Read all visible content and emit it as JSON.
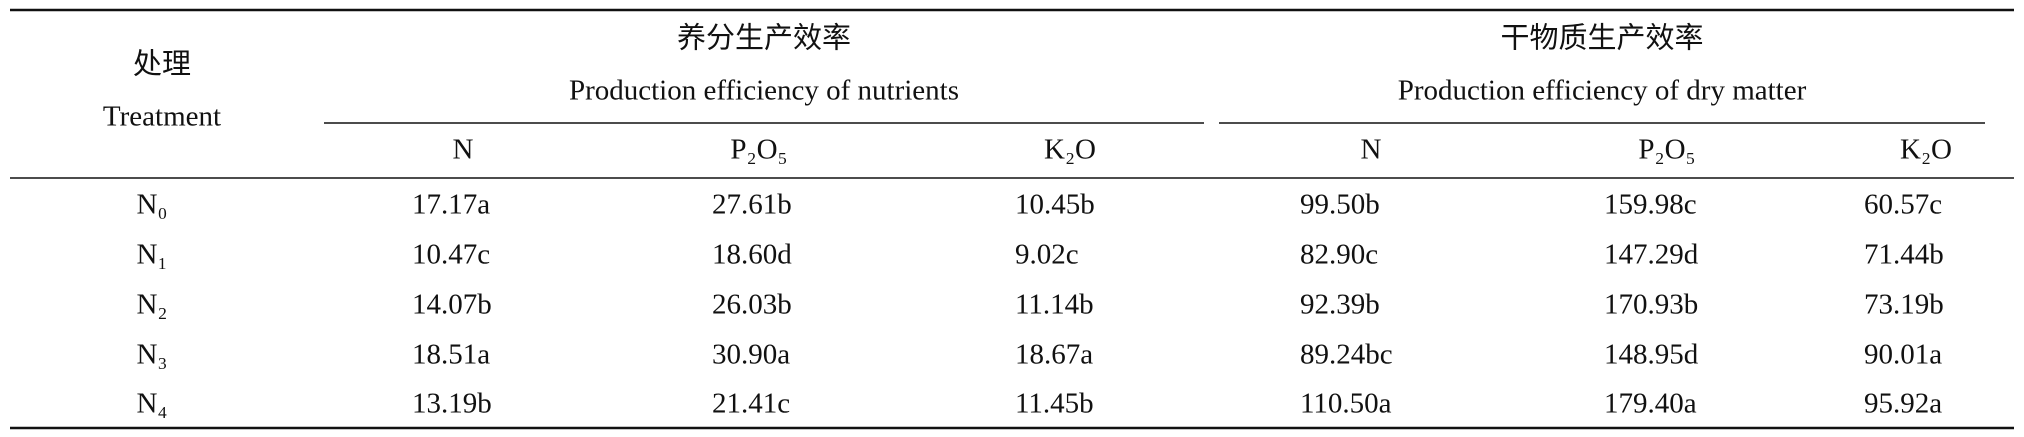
{
  "header": {
    "row_label": {
      "zh": "处理",
      "en": "Treatment"
    },
    "groups": [
      {
        "zh": "养分生产效率",
        "en": "Production efficiency of nutrients"
      },
      {
        "zh": "干物质生产效率",
        "en": "Production efficiency of dry matter"
      }
    ],
    "columns": [
      "N",
      "P₂O₅",
      "K₂O",
      "N",
      "P₂O₅",
      "K₂O"
    ]
  },
  "table": {
    "rows": [
      [
        "N₀",
        "17.17a",
        "27.61b",
        "10.45b",
        "99.50b",
        "159.98c",
        "60.57c"
      ],
      [
        "N₁",
        "10.47c",
        "18.60d",
        "9.02c",
        "82.90c",
        "147.29d",
        "71.44b"
      ],
      [
        "N₂",
        "14.07b",
        "26.03b",
        "11.14b",
        "92.39b",
        "170.93b",
        "73.19b"
      ],
      [
        "N₃",
        "18.51a",
        "30.90a",
        "18.67a",
        "89.24bc",
        "148.95d",
        "90.01a"
      ],
      [
        "N₄",
        "13.19b",
        "21.41c",
        "11.45b",
        "110.50a",
        "179.40a",
        "95.92a"
      ]
    ]
  }
}
